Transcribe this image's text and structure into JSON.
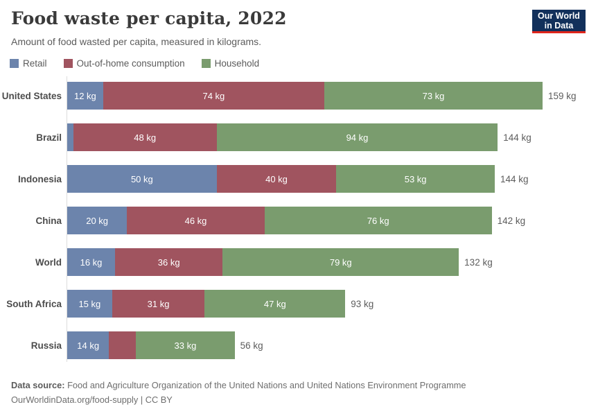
{
  "header": {
    "title": "Food waste per capita, 2022",
    "subtitle": "Amount of food wasted per capita, measured in kilograms.",
    "logo_line1": "Our World",
    "logo_line2": "in Data",
    "logo_bg": "#12305b",
    "logo_accent": "#e0261c"
  },
  "legend": [
    {
      "label": "Retail",
      "color": "#6c84ac"
    },
    {
      "label": "Out-of-home consumption",
      "color": "#a0545f"
    },
    {
      "label": "Household",
      "color": "#7a9c6e"
    }
  ],
  "chart_data": {
    "type": "bar",
    "orientation": "horizontal",
    "stacked": true,
    "unit": "kg",
    "xlim": [
      0,
      159
    ],
    "max_total": 159,
    "grid": false,
    "legend_position": "top-left",
    "series_names": [
      "Retail",
      "Out-of-home consumption",
      "Household"
    ],
    "series_colors": [
      "#6c84ac",
      "#a0545f",
      "#7a9c6e"
    ],
    "categories": [
      "United States",
      "Brazil",
      "Indonesia",
      "China",
      "World",
      "South Africa",
      "Russia"
    ],
    "rows": [
      {
        "label": "United States",
        "values": [
          12,
          74,
          73
        ],
        "segment_labels": [
          "12 kg",
          "74 kg",
          "73 kg"
        ],
        "total_label": "159 kg"
      },
      {
        "label": "Brazil",
        "values": [
          2,
          48,
          94
        ],
        "segment_labels": [
          "",
          "48 kg",
          "94 kg"
        ],
        "total_label": "144 kg"
      },
      {
        "label": "Indonesia",
        "values": [
          50,
          40,
          53
        ],
        "segment_labels": [
          "50 kg",
          "40 kg",
          "53 kg"
        ],
        "total_label": "144 kg"
      },
      {
        "label": "China",
        "values": [
          20,
          46,
          76
        ],
        "segment_labels": [
          "20 kg",
          "46 kg",
          "76 kg"
        ],
        "total_label": "142 kg"
      },
      {
        "label": "World",
        "values": [
          16,
          36,
          79
        ],
        "segment_labels": [
          "16 kg",
          "36 kg",
          "79 kg"
        ],
        "total_label": "132 kg"
      },
      {
        "label": "South Africa",
        "values": [
          15,
          31,
          47
        ],
        "segment_labels": [
          "15 kg",
          "31 kg",
          "47 kg"
        ],
        "total_label": "93 kg"
      },
      {
        "label": "Russia",
        "values": [
          14,
          9,
          33
        ],
        "segment_labels": [
          "14 kg",
          "",
          "33 kg"
        ],
        "total_label": "56 kg"
      }
    ]
  },
  "footer": {
    "datasource_label": "Data source:",
    "datasource_text": "Food and Agriculture Organization of the United Nations and United Nations Environment Programme",
    "link_line": "OurWorldinData.org/food-supply | CC BY"
  }
}
